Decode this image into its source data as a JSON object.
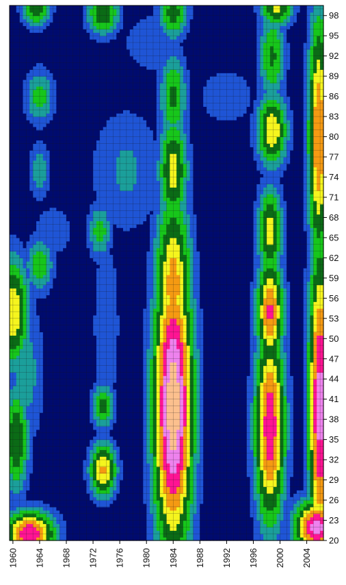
{
  "chart_data": {
    "type": "heatmap",
    "title": "",
    "xlabel": "",
    "ylabel": "",
    "x_ticks": [
      "1960",
      "1964",
      "1968",
      "1972",
      "1976",
      "1980",
      "1984",
      "1988",
      "1992",
      "1996",
      "2000",
      "2004"
    ],
    "y_ticks": [
      "20",
      "23",
      "26",
      "29",
      "32",
      "35",
      "38",
      "41",
      "44",
      "47",
      "50",
      "53",
      "56",
      "59",
      "62",
      "65",
      "68",
      "71",
      "74",
      "77",
      "80",
      "83",
      "86",
      "89",
      "92",
      "95",
      "98"
    ],
    "xlim": [
      1959.5,
      2006.5
    ],
    "ylim": [
      20,
      99.5
    ],
    "grid": true,
    "grid_color": "#1a1a1a",
    "levels": [
      {
        "level": 0,
        "color": "#000b6e"
      },
      {
        "level": 1,
        "color": "#1f55d6"
      },
      {
        "level": 2,
        "color": "#1b9f9b"
      },
      {
        "level": 3,
        "color": "#17c61b"
      },
      {
        "level": 4,
        "color": "#0b6b16"
      },
      {
        "level": 5,
        "color": "#f5f51e"
      },
      {
        "level": 6,
        "color": "#f59a12"
      },
      {
        "level": 7,
        "color": "#ff1493"
      },
      {
        "level": 8,
        "color": "#ee82ee"
      },
      {
        "level": 9,
        "color": "#fcc08e"
      }
    ],
    "peaks": [
      {
        "year": 1984,
        "age": 40,
        "sx": 2.2,
        "sy": 16,
        "amp": 9.8
      },
      {
        "year": 1984,
        "age": 58,
        "sx": 2.0,
        "sy": 10,
        "amp": 6.5
      },
      {
        "year": 1984,
        "age": 75,
        "sx": 1.6,
        "sy": 6,
        "amp": 5.5
      },
      {
        "year": 1984,
        "age": 86,
        "sx": 1.5,
        "sy": 5,
        "amp": 4.2
      },
      {
        "year": 1998.5,
        "age": 37,
        "sx": 1.7,
        "sy": 11,
        "amp": 7.8
      },
      {
        "year": 1998.5,
        "age": 54,
        "sx": 1.5,
        "sy": 6,
        "amp": 7.2
      },
      {
        "year": 1998.5,
        "age": 66,
        "sx": 1.4,
        "sy": 5,
        "amp": 5.5
      },
      {
        "year": 1998.8,
        "age": 81,
        "sx": 1.7,
        "sy": 4,
        "amp": 6.0
      },
      {
        "year": 1998.8,
        "age": 92,
        "sx": 1.5,
        "sy": 5,
        "amp": 4.2
      },
      {
        "year": 1999.5,
        "age": 99,
        "sx": 1.8,
        "sy": 2,
        "amp": 5.2
      },
      {
        "year": 1960,
        "age": 54,
        "sx": 1.8,
        "sy": 6,
        "amp": 6.0
      },
      {
        "year": 1960.5,
        "age": 35,
        "sx": 1.4,
        "sy": 6,
        "amp": 5.0
      },
      {
        "year": 1962.5,
        "age": 21,
        "sx": 2.8,
        "sy": 2.5,
        "amp": 8.0
      },
      {
        "year": 1964,
        "age": 61,
        "sx": 1.5,
        "sy": 3,
        "amp": 4.0
      },
      {
        "year": 1964,
        "age": 86,
        "sx": 1.6,
        "sy": 3,
        "amp": 3.6
      },
      {
        "year": 1964,
        "age": 75,
        "sx": 1.2,
        "sy": 3,
        "amp": 2.8
      },
      {
        "year": 1963.5,
        "age": 99,
        "sx": 1.6,
        "sy": 2,
        "amp": 4.5
      },
      {
        "year": 1973.5,
        "age": 30.5,
        "sx": 1.5,
        "sy": 3,
        "amp": 6.2
      },
      {
        "year": 1973.5,
        "age": 40,
        "sx": 1.2,
        "sy": 2.5,
        "amp": 4.5
      },
      {
        "year": 1973,
        "age": 66,
        "sx": 1.3,
        "sy": 3,
        "amp": 3.6
      },
      {
        "year": 1973.5,
        "age": 98.5,
        "sx": 1.8,
        "sy": 2.5,
        "amp": 5.0
      },
      {
        "year": 1984,
        "age": 98.5,
        "sx": 1.6,
        "sy": 3,
        "amp": 4.6
      },
      {
        "year": 2005.5,
        "age": 22,
        "sx": 2.5,
        "sy": 3,
        "amp": 8.5
      },
      {
        "year": 2006,
        "age": 40,
        "sx": 1.3,
        "sy": 18,
        "amp": 8.5
      },
      {
        "year": 2005.8,
        "age": 80,
        "sx": 1.2,
        "sy": 14,
        "amp": 7.0
      }
    ],
    "ridges": [
      {
        "year": 1977,
        "age": 75,
        "sx": 4,
        "sy": 7,
        "amp": 2.2
      },
      {
        "year": 1981,
        "age": 94,
        "sx": 4,
        "sy": 4,
        "amp": 1.6
      },
      {
        "year": 1992,
        "age": 86,
        "sx": 4,
        "sy": 4,
        "amp": 1.5
      },
      {
        "year": 1966,
        "age": 66,
        "sx": 3,
        "sy": 4,
        "amp": 1.4
      },
      {
        "year": 1974,
        "age": 52,
        "sx": 1.5,
        "sy": 10,
        "amp": 2.0
      },
      {
        "year": 1962,
        "age": 45,
        "sx": 2,
        "sy": 8,
        "amp": 2.5
      }
    ]
  }
}
